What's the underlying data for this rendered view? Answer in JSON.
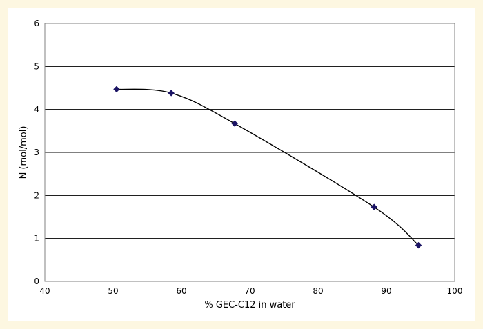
{
  "chart_data": {
    "type": "scatter",
    "xlabel": "% GEC-C12 in water",
    "ylabel": "N (mol/mol)",
    "xlim": [
      40,
      100
    ],
    "ylim": [
      0,
      6
    ],
    "x_ticks": [
      "40",
      "50",
      "60",
      "70",
      "80",
      "90",
      "100"
    ],
    "y_ticks": [
      "0",
      "1",
      "2",
      "3",
      "4",
      "5",
      "6"
    ],
    "grid": "horizontal",
    "legend": "none",
    "series": [
      {
        "x": [
          50.5,
          58.5,
          67.8,
          88.2,
          94.7
        ],
        "y": [
          4.47,
          4.38,
          3.67,
          1.73,
          0.84
        ],
        "marker": "diamond",
        "line": "smoothed",
        "color": "#1b1464"
      }
    ]
  }
}
